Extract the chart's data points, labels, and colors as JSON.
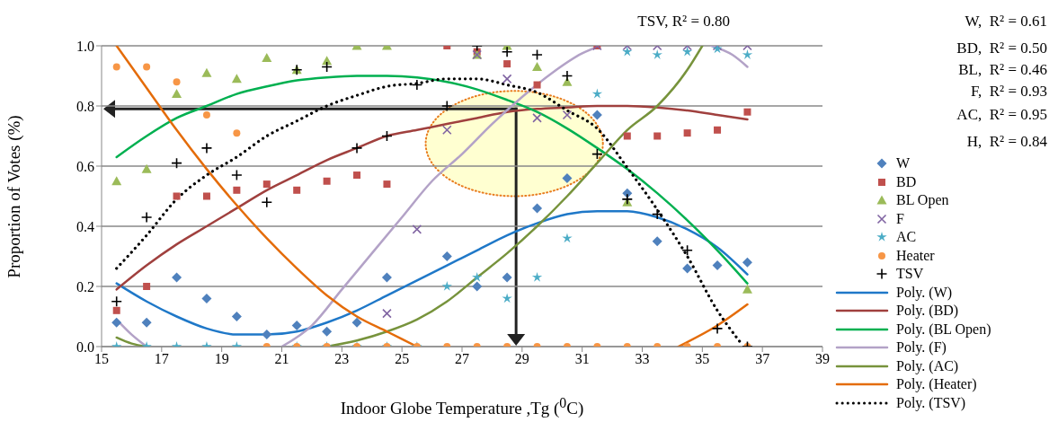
{
  "chart_data": {
    "type": "scatter",
    "xlabel": "Indoor Globe Temperature ,Tg ($^{0}$C)",
    "ylabel": "Proportion of Votes (%)",
    "x": [
      15.5,
      16.5,
      17.5,
      18.5,
      19.5,
      20.5,
      21.5,
      22.5,
      23.5,
      24.5,
      25.5,
      26.5,
      27.5,
      28.5,
      29.5,
      30.5,
      31.5,
      32.5,
      33.5,
      34.5,
      35.5,
      36.5
    ],
    "xlim": [
      15,
      39
    ],
    "xticks": [
      15,
      17,
      19,
      21,
      23,
      25,
      27,
      29,
      31,
      33,
      35,
      37,
      39
    ],
    "ylim": [
      0,
      1
    ],
    "yticks": [
      {
        "value": 0,
        "label": "0.0"
      },
      {
        "value": 0.2,
        "label": "0.2"
      },
      {
        "value": 0.4,
        "label": "0.4"
      },
      {
        "value": 0.6,
        "label": "0.6"
      },
      {
        "value": 0.8,
        "label": "0.8"
      },
      {
        "value": 1,
        "label": "1.0"
      }
    ],
    "grid": "y",
    "legend": "right",
    "annotations": [
      "TSV, R² = 0.80",
      "W,  R² = 0.61",
      "BD,  R² = 0.50",
      "BL,  R² = 0.46",
      "F,  R² = 0.93",
      "AC,  R² = 0.95",
      "H,  R² = 0.84"
    ],
    "series": [
      {
        "name": "W",
        "marker": "diamond",
        "color": "#4f81bd",
        "values": [
          0.08,
          0.08,
          0.23,
          0.16,
          0.1,
          0.04,
          0.07,
          0.05,
          0.08,
          0.23,
          null,
          0.3,
          0.2,
          0.23,
          0.46,
          0.56,
          0.77,
          0.51,
          0.35,
          0.26,
          0.27,
          0.28
        ]
      },
      {
        "name": "BD",
        "marker": "square",
        "color": "#c0504d",
        "values": [
          0.12,
          0.2,
          0.5,
          0.5,
          0.52,
          0.54,
          0.52,
          0.55,
          0.57,
          0.54,
          null,
          1.0,
          0.98,
          0.94,
          0.87,
          null,
          1.0,
          0.7,
          0.7,
          0.71,
          0.72,
          0.78
        ]
      },
      {
        "name": "BL Open",
        "marker": "triangle",
        "color": "#9bbb59",
        "values": [
          0.55,
          0.59,
          0.84,
          0.91,
          0.89,
          0.96,
          0.92,
          0.95,
          1.0,
          1.0,
          null,
          null,
          0.97,
          1.0,
          0.93,
          0.88,
          null,
          0.48,
          null,
          null,
          null,
          0.19
        ]
      },
      {
        "name": "F",
        "marker": "cross",
        "color": "#8064a2",
        "values": [
          null,
          null,
          null,
          null,
          null,
          null,
          null,
          null,
          null,
          0.11,
          0.39,
          0.72,
          0.97,
          0.89,
          0.76,
          0.77,
          1.0,
          1.0,
          1.0,
          1.0,
          1.0,
          1.0
        ]
      },
      {
        "name": "AC",
        "marker": "star",
        "color": "#4bacc6",
        "values": [
          0,
          0,
          0,
          0,
          0,
          null,
          0,
          0,
          0,
          0,
          0,
          0.2,
          0.23,
          0.16,
          0.23,
          0.36,
          0.84,
          0.98,
          0.97,
          0.98,
          0.99,
          0.97
        ]
      },
      {
        "name": "Heater",
        "marker": "circle",
        "color": "#f79646",
        "values": [
          0.93,
          0.93,
          0.88,
          0.77,
          0.71,
          0,
          0,
          0,
          0,
          0,
          0,
          0,
          0,
          0,
          0,
          0,
          0,
          0,
          0,
          0,
          0,
          0
        ]
      },
      {
        "name": "TSV",
        "marker": "plus",
        "color": "#000000",
        "values": [
          0.15,
          0.43,
          0.61,
          0.66,
          0.57,
          0.48,
          0.92,
          0.93,
          0.66,
          0.7,
          0.87,
          0.8,
          1.0,
          0.98,
          0.97,
          0.9,
          0.64,
          0.49,
          0.44,
          0.32,
          0.06,
          0.0
        ]
      },
      {
        "name": "Poly. (W)",
        "type": "line",
        "color": "#1f78c8",
        "x": [
          15.5,
          16.5,
          17.5,
          18.5,
          19.5,
          20.5,
          21.5,
          22.5,
          23.5,
          24.5,
          25.5,
          26.5,
          27.5,
          28.5,
          29.5,
          30.5,
          31.5,
          32.5,
          33.5,
          34.5,
          35.5,
          36.5
        ],
        "values": [
          0.21,
          0.15,
          0.1,
          0.06,
          0.04,
          0.04,
          0.05,
          0.08,
          0.12,
          0.17,
          0.22,
          0.27,
          0.32,
          0.37,
          0.41,
          0.44,
          0.45,
          0.45,
          0.43,
          0.39,
          0.33,
          0.24
        ]
      },
      {
        "name": "Poly. (BD)",
        "type": "line",
        "color": "#a0403e",
        "x": [
          15.5,
          16.5,
          17.5,
          18.5,
          19.5,
          20.5,
          21.5,
          22.5,
          23.5,
          24.5,
          25.5,
          26.5,
          27.5,
          28.5,
          29.5,
          30.5,
          31.5,
          32.5,
          33.5,
          34.5,
          35.5,
          36.5
        ],
        "values": [
          0.19,
          0.27,
          0.34,
          0.4,
          0.46,
          0.52,
          0.57,
          0.62,
          0.66,
          0.7,
          0.72,
          0.74,
          0.76,
          0.78,
          0.79,
          0.795,
          0.8,
          0.8,
          0.795,
          0.785,
          0.77,
          0.755
        ]
      },
      {
        "name": "Poly. (BL Open)",
        "type": "line",
        "color": "#00b050",
        "x": [
          15.5,
          16.5,
          17.5,
          18.5,
          19.5,
          20.5,
          21.5,
          22.5,
          23.5,
          24.5,
          25.5,
          26.5,
          27.5,
          28.5,
          29.5,
          30.5,
          31.5,
          32.5,
          33.5,
          34.5,
          35.5,
          36.5
        ],
        "values": [
          0.63,
          0.7,
          0.76,
          0.8,
          0.84,
          0.865,
          0.885,
          0.895,
          0.9,
          0.9,
          0.895,
          0.88,
          0.855,
          0.82,
          0.78,
          0.725,
          0.66,
          0.59,
          0.51,
          0.42,
          0.32,
          0.21
        ]
      },
      {
        "name": "Poly. (F)",
        "type": "line",
        "color": "#b3a2c7",
        "x": [
          15.5,
          16.0,
          16.5,
          18.5,
          21.0,
          22.0,
          23.0,
          24.0,
          25.0,
          26.0,
          27.0,
          28.0,
          29.0,
          30.0,
          31.0,
          31.6,
          33.5,
          35.3,
          36.0,
          36.5
        ],
        "values": [
          0.09,
          0.04,
          0.0,
          null,
          0.0,
          0.07,
          0.19,
          0.31,
          0.43,
          0.55,
          0.64,
          0.74,
          0.83,
          0.91,
          0.975,
          1.0,
          null,
          1.0,
          0.97,
          0.93
        ]
      },
      {
        "name": "Poly. (AC)",
        "type": "line",
        "color": "#77933c",
        "x": [
          15.5,
          16.0,
          16.5,
          19.5,
          22.5,
          23.5,
          24.5,
          25.5,
          26.5,
          27.5,
          28.5,
          29.5,
          30.5,
          31.5,
          32.5,
          33.5,
          34.5,
          35.0
        ],
        "values": [
          0.03,
          0.01,
          0.0,
          null,
          0.0,
          0.02,
          0.05,
          0.09,
          0.15,
          0.23,
          0.31,
          0.4,
          0.5,
          0.61,
          0.72,
          0.8,
          0.92,
          1.0
        ]
      },
      {
        "name": "Poly. (Heater)",
        "type": "line",
        "color": "#e46c0a",
        "x": [
          15.5,
          16.5,
          17.5,
          18.5,
          19.5,
          20.5,
          21.5,
          22.5,
          23.5,
          24.5,
          25.5,
          30.0,
          34.2,
          35.5,
          36.5
        ],
        "values": [
          1.0,
          0.86,
          0.72,
          0.59,
          0.47,
          0.36,
          0.26,
          0.17,
          0.1,
          0.05,
          0.0,
          null,
          0.0,
          0.07,
          0.14
        ]
      },
      {
        "name": "Poly. (TSV)",
        "type": "line",
        "color": "#000000",
        "line_style": "dotted",
        "x": [
          15.5,
          16.5,
          17.5,
          18.5,
          19.5,
          20.5,
          21.5,
          22.5,
          23.5,
          24.5,
          25.5,
          26.5,
          27.5,
          28.5,
          29.5,
          30.5,
          31.5,
          32.5,
          33.5,
          34.5,
          35.5,
          36.3
        ],
        "values": [
          0.26,
          0.37,
          0.49,
          0.57,
          0.63,
          0.7,
          0.75,
          0.8,
          0.835,
          0.865,
          0.875,
          0.89,
          0.89,
          0.87,
          0.845,
          0.785,
          0.725,
          0.595,
          0.455,
          0.3,
          0.12,
          0.01
        ]
      }
    ]
  }
}
